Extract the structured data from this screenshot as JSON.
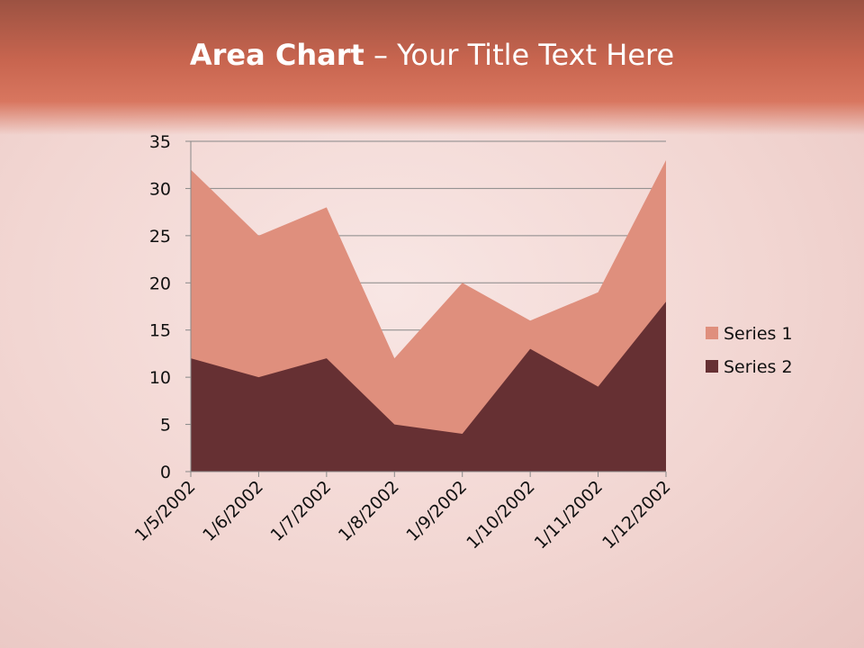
{
  "slide": {
    "title_bold": "Area Chart",
    "title_rest": " – Your Title Text Here"
  },
  "chart_data": {
    "type": "area",
    "categories": [
      "1/5/2002",
      "1/6/2002",
      "1/7/2002",
      "1/8/2002",
      "1/9/2002",
      "1/10/2002",
      "1/11/2002",
      "1/12/2002"
    ],
    "series": [
      {
        "name": "Series 1",
        "values": [
          32,
          25,
          28,
          12,
          20,
          16,
          19,
          33
        ],
        "color": "#df8f7d"
      },
      {
        "name": "Series 2",
        "values": [
          12,
          10,
          12,
          5,
          4,
          13,
          9,
          18
        ],
        "color": "#663033"
      }
    ],
    "ylim": [
      0,
      35
    ],
    "yticks": [
      0,
      5,
      10,
      15,
      20,
      25,
      30,
      35
    ],
    "grid": true,
    "legend": "right"
  }
}
